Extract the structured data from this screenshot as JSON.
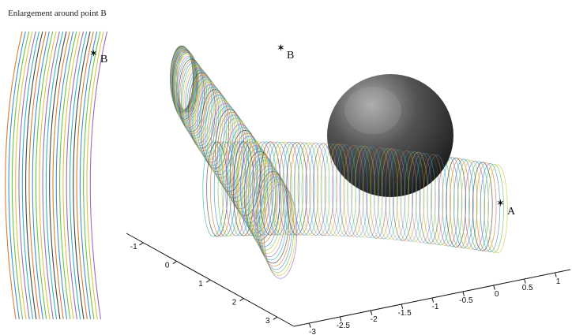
{
  "inset": {
    "title": "Enlargement around point B"
  },
  "points": {
    "a": "A",
    "b_main": "B",
    "b_inset": "B"
  },
  "axes": {
    "left_ticks": [
      "-1",
      "0",
      "1",
      "2",
      "3"
    ],
    "right_ticks": [
      "-3",
      "-2.5",
      "-2",
      "-1.5",
      "-1",
      "-0.5",
      "0",
      "0.5",
      "1"
    ]
  },
  "colors": {
    "background": "#ffffff",
    "sphere_dark": "#1b1b1b",
    "sphere_light": "#9a9a9a",
    "curve_palette": [
      "#e07a2e",
      "#3f8fd0",
      "#6cbf4f",
      "#d9c63a",
      "#9b6bc4",
      "#2fb6b0",
      "#444444"
    ]
  }
}
